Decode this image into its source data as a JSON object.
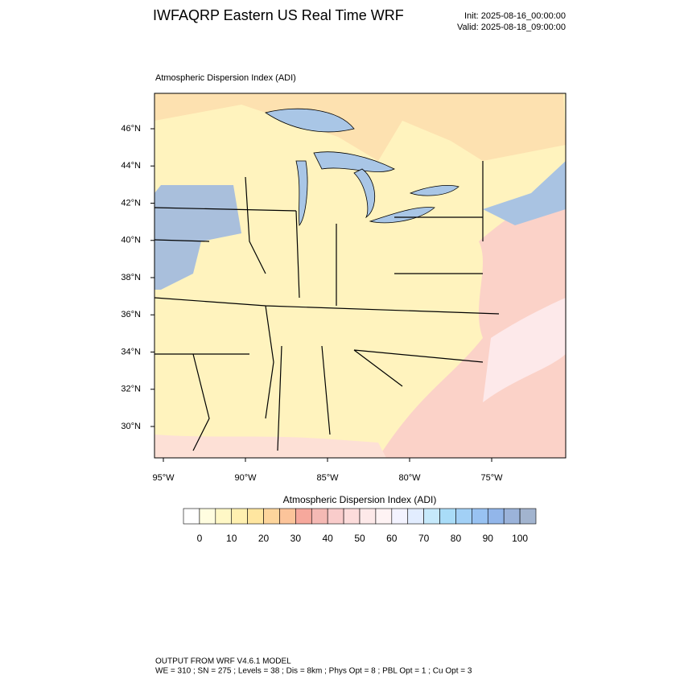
{
  "header": {
    "title": "IWFAQRP Eastern US Real Time WRF",
    "init": "Init: 2025-08-16_00:00:00",
    "valid": "Valid: 2025-08-18_09:00:00"
  },
  "map": {
    "subtitle": "Atmospheric Dispersion Index   (ADI)",
    "lat_labels": [
      "46°N",
      "44°N",
      "42°N",
      "40°N",
      "38°N",
      "36°N",
      "34°N",
      "32°N",
      "30°N"
    ],
    "lon_labels": [
      "95°W",
      "90°W",
      "85°W",
      "80°W",
      "75°W"
    ]
  },
  "colorbar": {
    "title": "Atmospheric Dispersion Index  (ADI)",
    "ticks": [
      0,
      10,
      20,
      30,
      40,
      50,
      60,
      70,
      80,
      90,
      100
    ],
    "colors": [
      "#ffffff",
      "#fffde0",
      "#fff8c6",
      "#fff0b0",
      "#ffe6a0",
      "#fdd59c",
      "#fcc49a",
      "#f6a89c",
      "#f5b9b4",
      "#f9cccb",
      "#fcdcdb",
      "#fde9e9",
      "#fef3f4",
      "#f3f3ff",
      "#e2edff",
      "#c6e9fb",
      "#a9dcf8",
      "#a2d0f6",
      "#98c2f2",
      "#92b6ea",
      "#9bb3da",
      "#a2b4cf"
    ]
  },
  "footer": {
    "line1": "OUTPUT FROM WRF V4.6.1 MODEL",
    "line2": "WE = 310 ; SN = 275 ; Levels = 38 ; Dis = 8km ; Phys Opt = 8 ; PBL Opt = 1 ; Cu Opt = 3"
  }
}
